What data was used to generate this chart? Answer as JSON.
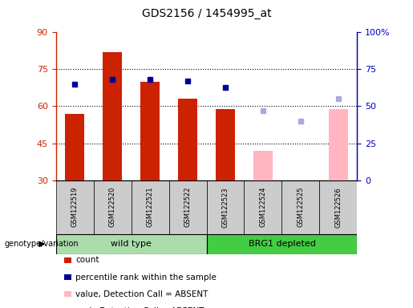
{
  "title": "GDS2156 / 1454995_at",
  "samples": [
    "GSM122519",
    "GSM122520",
    "GSM122521",
    "GSM122522",
    "GSM122523",
    "GSM122524",
    "GSM122525",
    "GSM122526"
  ],
  "count_present": [
    57,
    82,
    70,
    63,
    59,
    null,
    null,
    null
  ],
  "count_absent": [
    null,
    null,
    null,
    null,
    null,
    42,
    30,
    59
  ],
  "rank_present": [
    65,
    68,
    68,
    67,
    63,
    null,
    null,
    null
  ],
  "rank_absent": [
    null,
    null,
    null,
    null,
    null,
    47,
    40,
    55
  ],
  "ylim_left": [
    30,
    90
  ],
  "ylim_right": [
    0,
    100
  ],
  "yticks_left": [
    30,
    45,
    60,
    75,
    90
  ],
  "yticks_right": [
    0,
    25,
    50,
    75,
    100
  ],
  "ytick_labels_right": [
    "0",
    "25",
    "50",
    "75",
    "100%"
  ],
  "bar_width": 0.5,
  "color_count_present": "#CC2200",
  "color_count_absent": "#FFB6C1",
  "color_rank_present": "#000099",
  "color_rank_absent": "#AAAADD",
  "left_tick_color": "#CC2200",
  "right_tick_color": "#0000CC",
  "group_wt_color": "#AADDAA",
  "group_brg_color": "#44CC44",
  "xticklabel_bg": "#CCCCCC",
  "plot_bg": "#FFFFFF",
  "wt_label": "wild type",
  "brg_label": "BRG1 depleted",
  "genotype_label": "genotype/variation",
  "legend_items": [
    [
      "#CC2200",
      "count"
    ],
    [
      "#000099",
      "percentile rank within the sample"
    ],
    [
      "#FFB6C1",
      "value, Detection Call = ABSENT"
    ],
    [
      "#AAAADD",
      "rank, Detection Call = ABSENT"
    ]
  ]
}
